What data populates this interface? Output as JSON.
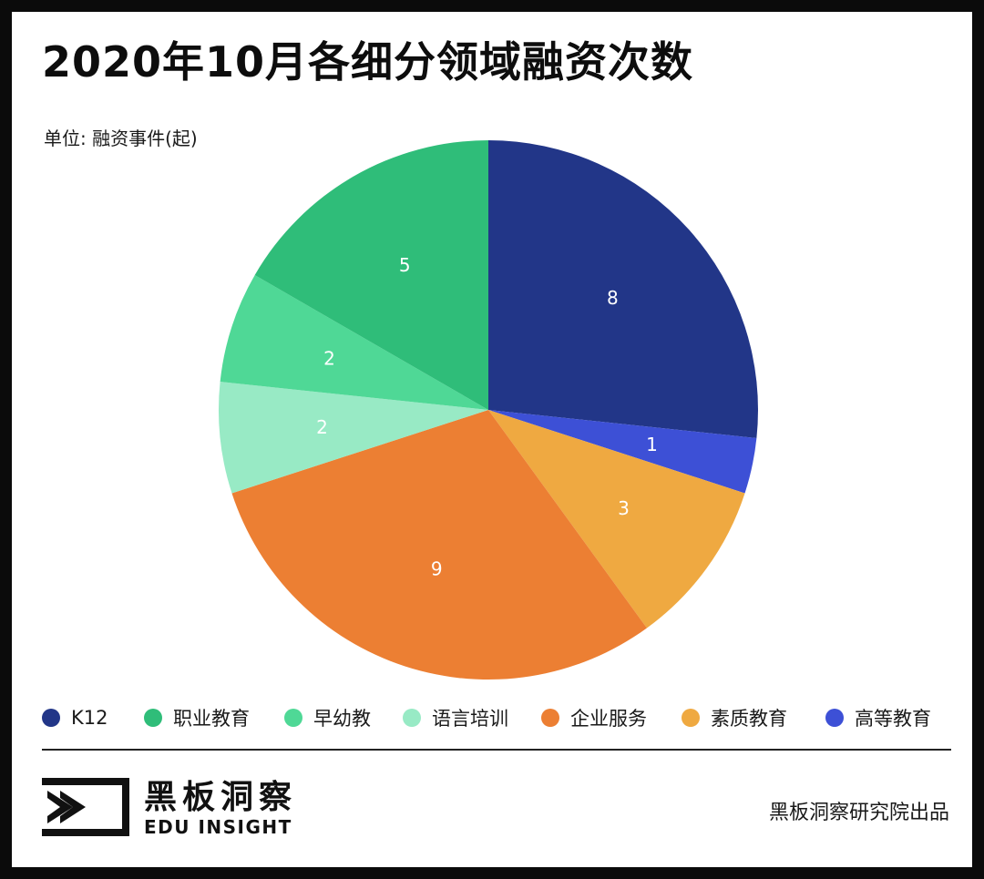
{
  "title": "2020年10月各细分领域融资次数",
  "unit_label": "单位: 融资事件(起)",
  "chart_data": {
    "type": "pie",
    "slices": [
      {
        "label": "K12",
        "value": 8,
        "color": "#223688"
      },
      {
        "label": "高等教育",
        "value": 1,
        "color": "#3d50d6"
      },
      {
        "label": "素质教育",
        "value": 3,
        "color": "#efa941"
      },
      {
        "label": "企业服务",
        "value": 9,
        "color": "#ec7f33"
      },
      {
        "label": "语言培训",
        "value": 2,
        "color": "#98eac5"
      },
      {
        "label": "早幼教",
        "value": 2,
        "color": "#4fd896"
      },
      {
        "label": "职业教育",
        "value": 5,
        "color": "#2fbd79"
      }
    ],
    "start": "12 o'clock",
    "direction": "clockwise",
    "data_labels": true
  },
  "legend": [
    {
      "label": "K12",
      "color": "#223688"
    },
    {
      "label": "职业教育",
      "color": "#2fbd79"
    },
    {
      "label": "早幼教",
      "color": "#4fd896"
    },
    {
      "label": "语言培训",
      "color": "#98eac5"
    },
    {
      "label": "企业服务",
      "color": "#ec7f33"
    },
    {
      "label": "素质教育",
      "color": "#efa941"
    },
    {
      "label": "高等教育",
      "color": "#3d50d6"
    }
  ],
  "footer": {
    "logo_cn": "黑板洞察",
    "logo_en": "EDU INSIGHT",
    "credit": "黑板洞察研究院出品"
  }
}
